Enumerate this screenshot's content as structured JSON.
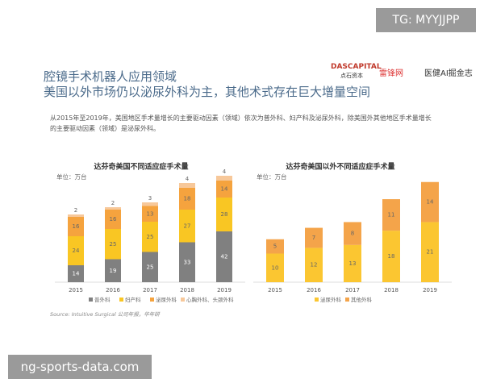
{
  "watermark_top": "TG: MYYJJPP",
  "watermark_bottom": "ng-sports-data.com",
  "header": {
    "title": "腔镜手术机器人应用领域",
    "subtitle": "美国以外市场仍以泌尿外科为主，其他术式存在巨大增量空间",
    "logos": [
      "DASCAPITAL",
      "点石资本",
      "雷锋网",
      "医健AI掘金志"
    ]
  },
  "description": "从2015年至2019年，美国地区手术量增长的主要驱动因素（领域）依次为普外科、妇产科及泌尿外科，除美国外其他地区手术量增长的主要驱动因素（领域）是泌尿外科。",
  "source": "Source: Intuitive Surgical 公司年报，华年研",
  "chart_data": [
    {
      "type": "stacked_bar",
      "title": "达芬奇美国不同适应症手术量",
      "unit": "单位：万台",
      "categories": [
        "2015",
        "2016",
        "2017",
        "2018",
        "2019"
      ],
      "series": [
        {
          "name": "普外科",
          "color": "#808080",
          "values": [
            14,
            19,
            25,
            33,
            42
          ]
        },
        {
          "name": "妇产科",
          "color": "#f9c623",
          "values": [
            24,
            25,
            25,
            27,
            28
          ]
        },
        {
          "name": "泌尿外科",
          "color": "#f5a33e",
          "values": [
            16,
            16,
            13,
            18,
            14
          ]
        },
        {
          "name": "心胸外科、头颈外科",
          "color": "#f7c89a",
          "values": [
            2,
            2,
            3,
            4,
            4
          ]
        }
      ]
    },
    {
      "type": "stacked_bar",
      "title": "达芬奇美国以外不同适应症手术量",
      "unit": "单位：万台",
      "categories": [
        "2015",
        "2016",
        "2017",
        "2018",
        "2019"
      ],
      "series": [
        {
          "name": "泌尿外科",
          "color": "#fbc631",
          "values": [
            10,
            12,
            13,
            18,
            21
          ]
        },
        {
          "name": "其他外科",
          "color": "#f4a44a",
          "values": [
            5,
            7,
            8,
            11,
            14
          ]
        }
      ]
    }
  ]
}
